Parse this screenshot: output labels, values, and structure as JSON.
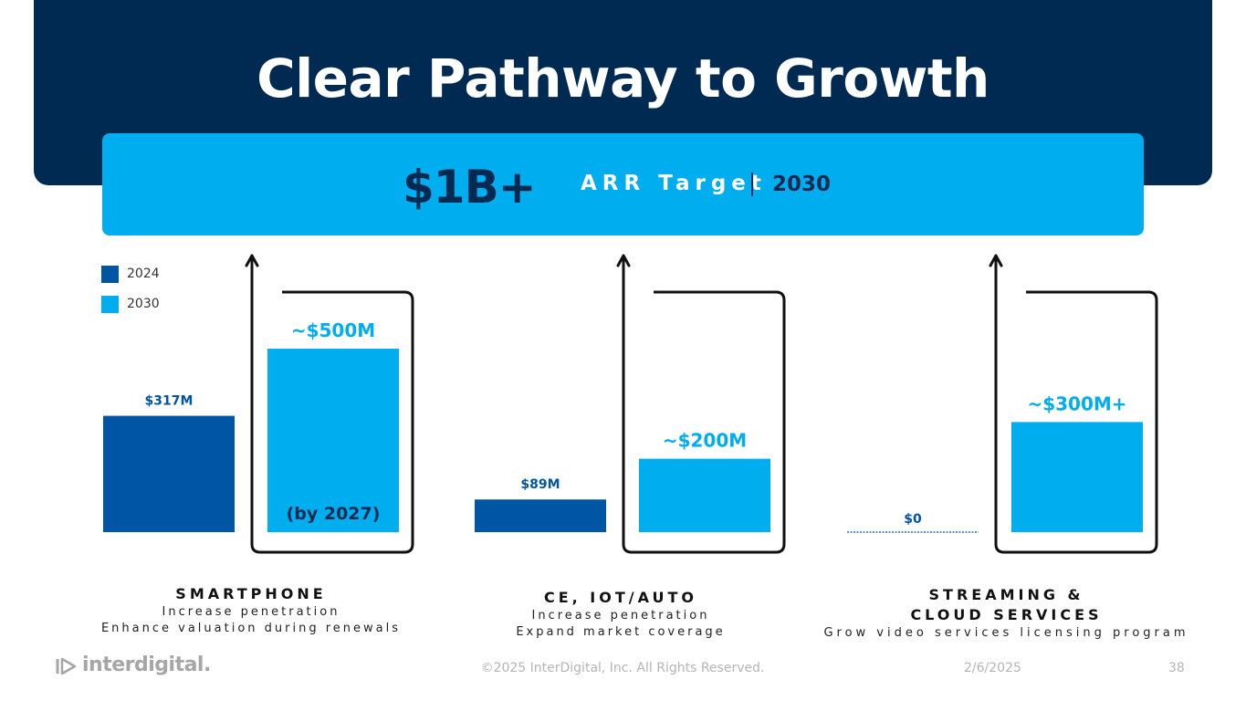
{
  "title": "Clear Pathway to Growth",
  "target": {
    "amount": "$1B+",
    "label": "ARR Target",
    "year": "2030"
  },
  "legend": [
    {
      "label": "2024",
      "color": "#0055a5"
    },
    {
      "label": "2030",
      "color": "#00adee"
    }
  ],
  "segments": [
    {
      "title_lines": [
        "SMARTPHONE"
      ],
      "subtitle_lines": [
        "Increase penetration",
        "Enhance valuation during renewals"
      ]
    },
    {
      "title_lines": [
        "CE, IOT/AUTO"
      ],
      "subtitle_lines": [
        "Increase penetration",
        "Expand market coverage"
      ]
    },
    {
      "title_lines": [
        "STREAMING &",
        "CLOUD SERVICES"
      ],
      "subtitle_lines": [
        "Grow video services licensing program"
      ]
    }
  ],
  "chart_data": {
    "type": "bar",
    "categories": [
      "SMARTPHONE",
      "CE, IOT/AUTO",
      "STREAMING & CLOUD SERVICES"
    ],
    "series": [
      {
        "name": "2024",
        "values": [
          317,
          89,
          0
        ],
        "labels": [
          "$317M",
          "$89M",
          "$0"
        ],
        "color": "#0055a5"
      },
      {
        "name": "2030",
        "values": [
          500,
          200,
          300
        ],
        "labels": [
          "~$500M",
          "~$200M",
          "~$300M+"
        ],
        "color": "#00adee"
      }
    ],
    "annotations": [
      {
        "category": "SMARTPHONE",
        "series": "2030",
        "text": "(by 2027)"
      }
    ],
    "unit": "$M",
    "ylim": [
      0,
      500
    ]
  },
  "footer": {
    "logo": "interdigital.",
    "copyright": "©2025 InterDigital, Inc. All Rights Reserved.",
    "date": "2/6/2025",
    "page": "38"
  }
}
